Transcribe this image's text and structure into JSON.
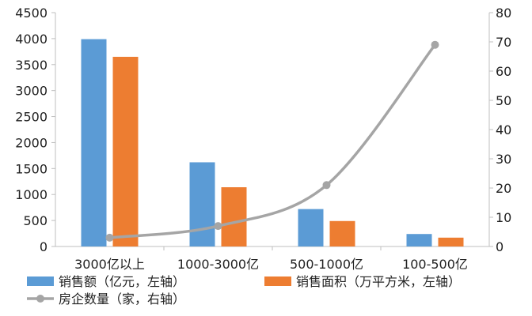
{
  "chart_data": {
    "type": "bar",
    "categories": [
      "3000亿以上",
      "1000-3000亿",
      "500-1000亿",
      "100-500亿"
    ],
    "series": [
      {
        "name": "销售额（亿元，左轴）",
        "type": "bar",
        "axis": "left",
        "color": "#5B9BD5",
        "values": [
          3990,
          1620,
          720,
          240
        ]
      },
      {
        "name": "销售面积（万平方米，左轴）",
        "type": "bar",
        "axis": "left",
        "color": "#ED7D31",
        "values": [
          3650,
          1140,
          490,
          170
        ]
      },
      {
        "name": "房企数量（家，右轴）",
        "type": "line",
        "axis": "right",
        "color": "#A5A5A5",
        "values": [
          3,
          7,
          21,
          69
        ]
      }
    ],
    "y_left": {
      "ylim": [
        0,
        4500
      ],
      "ticks": [
        0,
        500,
        1000,
        1500,
        2000,
        2500,
        3000,
        3500,
        4000,
        4500
      ]
    },
    "y_right": {
      "ylim": [
        0,
        80
      ],
      "ticks": [
        0,
        10,
        20,
        30,
        40,
        50,
        60,
        70,
        80
      ]
    },
    "grid": false,
    "legend": "bottom"
  }
}
